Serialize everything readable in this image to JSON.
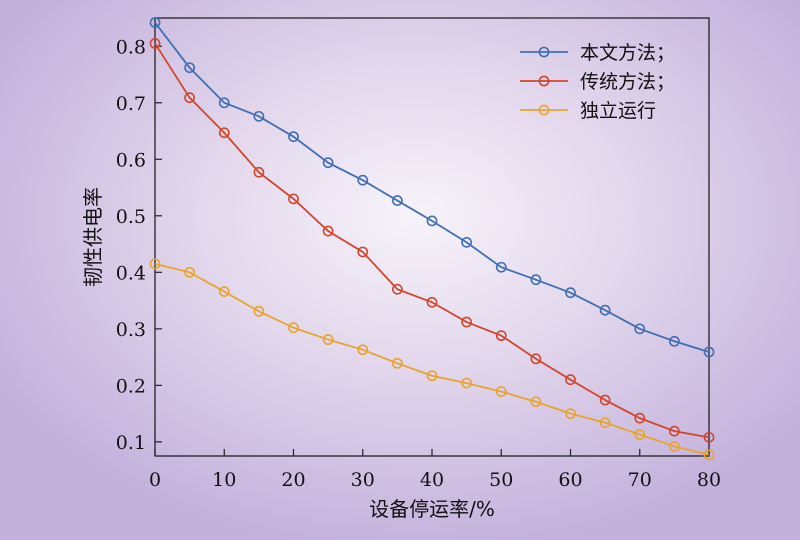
{
  "chart_data": {
    "type": "line",
    "xlabel": "设备停运率/%",
    "ylabel": "韧性供电率",
    "xlim": [
      0,
      80
    ],
    "ylim": [
      0.075,
      0.85
    ],
    "xticks": [
      0,
      10,
      20,
      30,
      40,
      50,
      60,
      70,
      80
    ],
    "yticks": [
      0.1,
      0.2,
      0.3,
      0.4,
      0.5,
      0.6,
      0.7,
      0.8
    ],
    "grid": false,
    "legend_position": "top-right",
    "x": [
      0,
      5,
      10,
      15,
      20,
      25,
      30,
      35,
      40,
      45,
      50,
      55,
      60,
      65,
      70,
      75,
      80
    ],
    "series": [
      {
        "name": "本文方法；",
        "color": "#3f6fb5",
        "values": [
          0.842,
          0.762,
          0.7,
          0.676,
          0.64,
          0.594,
          0.563,
          0.527,
          0.491,
          0.453,
          0.409,
          0.387,
          0.364,
          0.333,
          0.3,
          0.278,
          0.259
        ]
      },
      {
        "name": "传统方法；",
        "color": "#d2472c",
        "values": [
          0.805,
          0.709,
          0.647,
          0.577,
          0.53,
          0.473,
          0.436,
          0.37,
          0.347,
          0.312,
          0.288,
          0.247,
          0.21,
          0.174,
          0.142,
          0.119,
          0.108
        ]
      },
      {
        "name": "独立运行",
        "color": "#e8a42e",
        "values": [
          0.415,
          0.4,
          0.366,
          0.331,
          0.302,
          0.281,
          0.263,
          0.239,
          0.217,
          0.204,
          0.189,
          0.171,
          0.15,
          0.134,
          0.113,
          0.092,
          0.077
        ]
      }
    ]
  }
}
